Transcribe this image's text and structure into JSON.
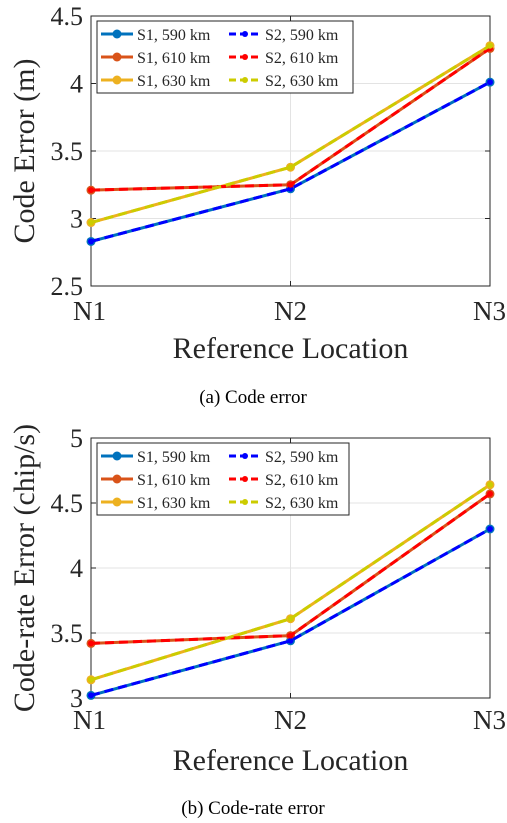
{
  "chart_data": [
    {
      "type": "line",
      "title": "",
      "caption": "(a) Code error",
      "xlabel": "Reference Location",
      "ylabel": "Code Error (m)",
      "categories": [
        "N1",
        "N2",
        "N3"
      ],
      "ylim": [
        2.5,
        4.5
      ],
      "yticks": [
        "2.5",
        "3",
        "3.5",
        "4",
        "4.5"
      ],
      "grid": true,
      "legend_position": "top-left",
      "series": [
        {
          "name": "S1, 590 km",
          "color": "#0072BD",
          "style": "solid",
          "values": [
            2.83,
            3.22,
            4.01
          ]
        },
        {
          "name": "S1, 610 km",
          "color": "#D95319",
          "style": "solid",
          "values": [
            3.21,
            3.25,
            4.26
          ]
        },
        {
          "name": "S1, 630 km",
          "color": "#EDB120",
          "style": "solid",
          "values": [
            2.97,
            3.38,
            4.28
          ]
        },
        {
          "name": "S2, 590 km",
          "color": "#0000FF",
          "style": "dashed",
          "values": [
            2.83,
            3.22,
            4.01
          ]
        },
        {
          "name": "S2, 610 km",
          "color": "#FF0000",
          "style": "dashed",
          "values": [
            3.21,
            3.25,
            4.26
          ]
        },
        {
          "name": "S2, 630 km",
          "color": "#CCCC00",
          "style": "dashed",
          "values": [
            2.97,
            3.38,
            4.28
          ]
        }
      ]
    },
    {
      "type": "line",
      "title": "",
      "caption": "(b) Code-rate error",
      "xlabel": "Reference Location",
      "ylabel": "Code-rate Error (chip/s)",
      "categories": [
        "N1",
        "N2",
        "N3"
      ],
      "ylim": [
        3,
        5
      ],
      "yticks": [
        "3",
        "3.5",
        "4",
        "4.5",
        "5"
      ],
      "grid": true,
      "legend_position": "top-left",
      "series": [
        {
          "name": "S1, 590 km",
          "color": "#0072BD",
          "style": "solid",
          "values": [
            3.02,
            3.44,
            4.3
          ]
        },
        {
          "name": "S1, 610 km",
          "color": "#D95319",
          "style": "solid",
          "values": [
            3.42,
            3.48,
            4.57
          ]
        },
        {
          "name": "S1, 630 km",
          "color": "#EDB120",
          "style": "solid",
          "values": [
            3.14,
            3.61,
            4.64
          ]
        },
        {
          "name": "S2, 590 km",
          "color": "#0000FF",
          "style": "dashed",
          "values": [
            3.02,
            3.44,
            4.3
          ]
        },
        {
          "name": "S2, 610 km",
          "color": "#FF0000",
          "style": "dashed",
          "values": [
            3.42,
            3.48,
            4.57
          ]
        },
        {
          "name": "S2, 630 km",
          "color": "#CCCC00",
          "style": "dashed",
          "values": [
            3.14,
            3.61,
            4.64
          ]
        }
      ]
    }
  ]
}
